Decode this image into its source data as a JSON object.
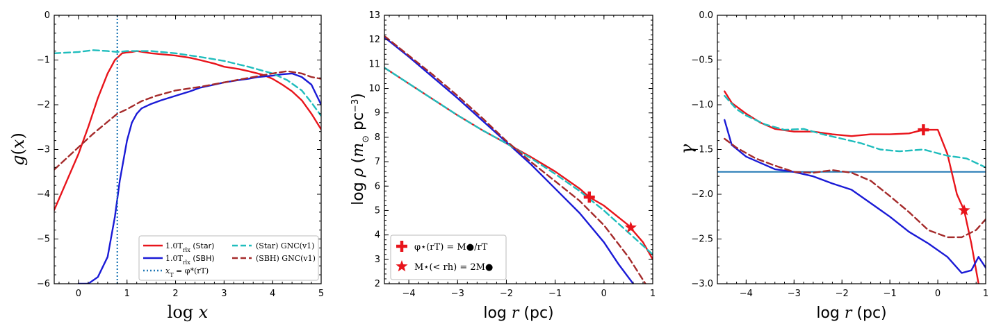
{
  "colors": {
    "star": "#e8141b",
    "sbh": "#1a1ad6",
    "star_gnc": "#1fbdbd",
    "sbh_gnc": "#a52a2a",
    "xt": "#1f77b4",
    "gamma_ref": "#1f77b4"
  },
  "chart_data": [
    {
      "type": "line",
      "panel": "left",
      "xlabel": "log x",
      "ylabel": "g(x)",
      "xlim": [
        -0.5,
        5
      ],
      "ylim": [
        -6,
        0
      ],
      "xticks": [
        0,
        1,
        2,
        3,
        4,
        5
      ],
      "yticks": [
        0,
        -1,
        -2,
        -3,
        -4,
        -5,
        -6
      ],
      "xtick_labels": [
        "0",
        "1",
        "2",
        "3",
        "4",
        "5"
      ],
      "ytick_labels": [
        "0",
        "−1",
        "−2",
        "−3",
        "−4",
        "−5",
        "−6"
      ],
      "legend_position": "lower-right",
      "series": [
        {
          "name": "1.0T_rlx (Star)",
          "label": "1.0T",
          "label_sub": "rlx",
          "label_tail": " (Star)",
          "color_key": "star",
          "style": "solid",
          "x": [
            -0.5,
            -0.2,
            0,
            0.2,
            0.4,
            0.6,
            0.75,
            0.9,
            1.0,
            1.1,
            1.2,
            1.5,
            1.8,
            2.0,
            2.3,
            2.5,
            2.8,
            3.0,
            3.3,
            3.5,
            3.8,
            4.0,
            4.2,
            4.4,
            4.6,
            4.8,
            5.0
          ],
          "y": [
            -4.35,
            -3.6,
            -3.1,
            -2.5,
            -1.85,
            -1.3,
            -1.0,
            -0.85,
            -0.83,
            -0.82,
            -0.8,
            -0.85,
            -0.88,
            -0.9,
            -0.95,
            -1.0,
            -1.08,
            -1.15,
            -1.2,
            -1.25,
            -1.33,
            -1.42,
            -1.55,
            -1.7,
            -1.9,
            -2.2,
            -2.55
          ]
        },
        {
          "name": "1.0T_rlx (SBH)",
          "label": "1.0T",
          "label_sub": "rlx",
          "label_tail": " (SBH)",
          "color_key": "sbh",
          "style": "solid",
          "x": [
            0.0,
            0.2,
            0.4,
            0.6,
            0.75,
            0.85,
            1.0,
            1.1,
            1.2,
            1.3,
            1.5,
            1.7,
            2.0,
            2.3,
            2.5,
            2.8,
            3.0,
            3.3,
            3.5,
            3.7,
            3.9,
            4.0,
            4.2,
            4.4,
            4.6,
            4.8,
            5.0
          ],
          "y": [
            -6.0,
            -6.0,
            -5.85,
            -5.4,
            -4.5,
            -3.7,
            -2.8,
            -2.4,
            -2.2,
            -2.08,
            -1.98,
            -1.9,
            -1.8,
            -1.7,
            -1.62,
            -1.55,
            -1.5,
            -1.45,
            -1.42,
            -1.38,
            -1.36,
            -1.35,
            -1.32,
            -1.3,
            -1.38,
            -1.55,
            -2.0
          ]
        },
        {
          "name": "x_T = φ_*(r_T)",
          "label": "x",
          "label_sub": "T",
          "label_tail": " = φ*(rT)",
          "color_key": "xt",
          "style": "dotted",
          "vertical_x": 0.8
        },
        {
          "name": "(Star) GNC(v1)",
          "label": "(Star) GNC(v1)",
          "color_key": "star_gnc",
          "style": "dashed",
          "x": [
            -0.5,
            0,
            0.3,
            0.6,
            0.8,
            1.0,
            1.5,
            2.0,
            2.5,
            3.0,
            3.5,
            4.0,
            4.3,
            4.6,
            4.8,
            5.0
          ],
          "y": [
            -0.85,
            -0.82,
            -0.78,
            -0.8,
            -0.82,
            -0.8,
            -0.8,
            -0.85,
            -0.93,
            -1.02,
            -1.15,
            -1.3,
            -1.45,
            -1.68,
            -1.95,
            -2.25
          ]
        },
        {
          "name": "(SBH) GNC(v1)",
          "label": "(SBH) GNC(v1)",
          "color_key": "sbh_gnc",
          "style": "dashed",
          "x": [
            -0.5,
            0,
            0.3,
            0.6,
            0.8,
            1.0,
            1.3,
            1.6,
            2.0,
            2.5,
            3.0,
            3.5,
            4.0,
            4.3,
            4.6,
            4.8,
            5.0
          ],
          "y": [
            -3.45,
            -2.95,
            -2.65,
            -2.38,
            -2.2,
            -2.1,
            -1.92,
            -1.8,
            -1.68,
            -1.6,
            -1.5,
            -1.4,
            -1.3,
            -1.25,
            -1.3,
            -1.38,
            -1.42
          ]
        }
      ]
    },
    {
      "type": "line",
      "panel": "middle",
      "xlabel": "log r (pc)",
      "ylabel": "log ρ (m⊙ pc⁻³)",
      "xlim": [
        -4.5,
        1
      ],
      "ylim": [
        2,
        13
      ],
      "xticks": [
        -4,
        -3,
        -2,
        -1,
        0,
        1
      ],
      "yticks": [
        2,
        3,
        4,
        5,
        6,
        7,
        8,
        9,
        10,
        11,
        12,
        13
      ],
      "xtick_labels": [
        "−4",
        "−3",
        "−2",
        "−1",
        "0",
        "1"
      ],
      "ytick_labels": [
        "2",
        "3",
        "4",
        "5",
        "6",
        "7",
        "8",
        "9",
        "10",
        "11",
        "12",
        "13"
      ],
      "legend_position": "lower-left",
      "series": [
        {
          "name": "Star",
          "color_key": "star",
          "style": "solid",
          "x": [
            -4.5,
            -4,
            -3.5,
            -3,
            -2.5,
            -2,
            -1.5,
            -1,
            -0.5,
            -0.3,
            0,
            0.5,
            0.8,
            1.0
          ],
          "y": [
            10.85,
            10.2,
            9.55,
            8.9,
            8.3,
            7.75,
            7.2,
            6.6,
            5.9,
            5.55,
            5.2,
            4.4,
            3.7,
            3.0
          ]
        },
        {
          "name": "SBH",
          "color_key": "sbh",
          "style": "solid",
          "x": [
            -4.5,
            -4,
            -3.5,
            -3,
            -2.5,
            -2,
            -1.5,
            -1,
            -0.5,
            0,
            0.3,
            0.6
          ],
          "y": [
            12.1,
            11.3,
            10.45,
            9.6,
            8.7,
            7.8,
            6.9,
            5.9,
            4.9,
            3.7,
            2.8,
            2.0
          ]
        },
        {
          "name": "Star GNC(v1)",
          "color_key": "star_gnc",
          "style": "dashed",
          "x": [
            -4.5,
            -4,
            -3.5,
            -3,
            -2.5,
            -2,
            -1.5,
            -1,
            -0.5,
            0,
            0.5,
            1.0
          ],
          "y": [
            10.85,
            10.2,
            9.55,
            8.9,
            8.3,
            7.75,
            7.15,
            6.5,
            5.8,
            5.0,
            4.1,
            3.2
          ]
        },
        {
          "name": "SBH GNC(v1)",
          "color_key": "sbh_gnc",
          "style": "dashed",
          "x": [
            -4.5,
            -4,
            -3.5,
            -3,
            -2.5,
            -2,
            -1.5,
            -1,
            -0.5,
            0,
            0.5,
            0.85
          ],
          "y": [
            12.15,
            11.35,
            10.55,
            9.7,
            8.8,
            7.85,
            7.0,
            6.2,
            5.4,
            4.4,
            3.1,
            2.0
          ]
        }
      ],
      "markers": [
        {
          "name": "phi_star",
          "shape": "plus",
          "x": -0.3,
          "y": 5.55,
          "color_key": "star"
        },
        {
          "name": "r_h",
          "shape": "star",
          "x": 0.55,
          "y": 4.3,
          "color_key": "star"
        }
      ],
      "legend": [
        {
          "shape": "plus",
          "text": "φ⋆(rT) = M●/rT"
        },
        {
          "shape": "star",
          "text": "M⋆(< rh) = 2M●"
        }
      ]
    },
    {
      "type": "line",
      "panel": "right",
      "xlabel": "log r (pc)",
      "ylabel": "γ",
      "xlim": [
        -4.6,
        1
      ],
      "ylim": [
        -3.0,
        0.0
      ],
      "xticks": [
        -4,
        -3,
        -2,
        -1,
        0,
        1
      ],
      "yticks": [
        0.0,
        -0.5,
        -1.0,
        -1.5,
        -2.0,
        -2.5,
        -3.0
      ],
      "xtick_labels": [
        "−4",
        "−3",
        "−2",
        "−1",
        "0",
        "1"
      ],
      "ytick_labels": [
        "0.0",
        "−0.5",
        "−1.0",
        "−1.5",
        "−2.0",
        "−2.5",
        "−3.0"
      ],
      "reference_line": -1.75,
      "series": [
        {
          "name": "Star",
          "color_key": "star",
          "style": "solid",
          "x": [
            -4.45,
            -4.3,
            -4.0,
            -3.7,
            -3.4,
            -3.0,
            -2.6,
            -2.2,
            -1.8,
            -1.4,
            -1.0,
            -0.6,
            -0.3,
            0,
            0.2,
            0.4,
            0.55,
            0.7,
            0.85
          ],
          "y": [
            -0.85,
            -0.98,
            -1.1,
            -1.2,
            -1.27,
            -1.3,
            -1.3,
            -1.33,
            -1.35,
            -1.33,
            -1.33,
            -1.32,
            -1.28,
            -1.28,
            -1.55,
            -2.0,
            -2.18,
            -2.55,
            -3.0
          ]
        },
        {
          "name": "SBH",
          "color_key": "sbh",
          "style": "solid",
          "x": [
            -4.45,
            -4.3,
            -4.0,
            -3.7,
            -3.4,
            -3.0,
            -2.6,
            -2.2,
            -1.8,
            -1.4,
            -1.0,
            -0.6,
            -0.2,
            0.2,
            0.5,
            0.7,
            0.85,
            1.0
          ],
          "y": [
            -1.17,
            -1.45,
            -1.58,
            -1.65,
            -1.72,
            -1.75,
            -1.8,
            -1.88,
            -1.95,
            -2.1,
            -2.25,
            -2.42,
            -2.55,
            -2.7,
            -2.88,
            -2.85,
            -2.7,
            -2.82
          ]
        },
        {
          "name": "Star GNC(v1)",
          "color_key": "star_gnc",
          "style": "dashed",
          "x": [
            -4.45,
            -4.2,
            -4.0,
            -3.6,
            -3.2,
            -2.8,
            -2.4,
            -2.0,
            -1.6,
            -1.2,
            -0.8,
            -0.3,
            0.2,
            0.6,
            1.0
          ],
          "y": [
            -0.9,
            -1.05,
            -1.12,
            -1.22,
            -1.28,
            -1.27,
            -1.33,
            -1.38,
            -1.43,
            -1.5,
            -1.52,
            -1.5,
            -1.57,
            -1.6,
            -1.7
          ]
        },
        {
          "name": "SBH GNC(v1)",
          "color_key": "sbh_gnc",
          "style": "dashed",
          "x": [
            -4.45,
            -4.2,
            -3.8,
            -3.4,
            -3.0,
            -2.6,
            -2.2,
            -1.8,
            -1.4,
            -1.0,
            -0.6,
            -0.2,
            0.2,
            0.5,
            0.8,
            1.0
          ],
          "y": [
            -1.38,
            -1.48,
            -1.6,
            -1.68,
            -1.75,
            -1.76,
            -1.73,
            -1.76,
            -1.85,
            -2.02,
            -2.2,
            -2.4,
            -2.48,
            -2.48,
            -2.4,
            -2.28
          ]
        }
      ],
      "markers": [
        {
          "name": "phi_star",
          "shape": "plus",
          "x": -0.3,
          "y": -1.28,
          "color_key": "star"
        },
        {
          "name": "r_h",
          "shape": "star",
          "x": 0.55,
          "y": -2.18,
          "color_key": "star"
        }
      ]
    }
  ]
}
